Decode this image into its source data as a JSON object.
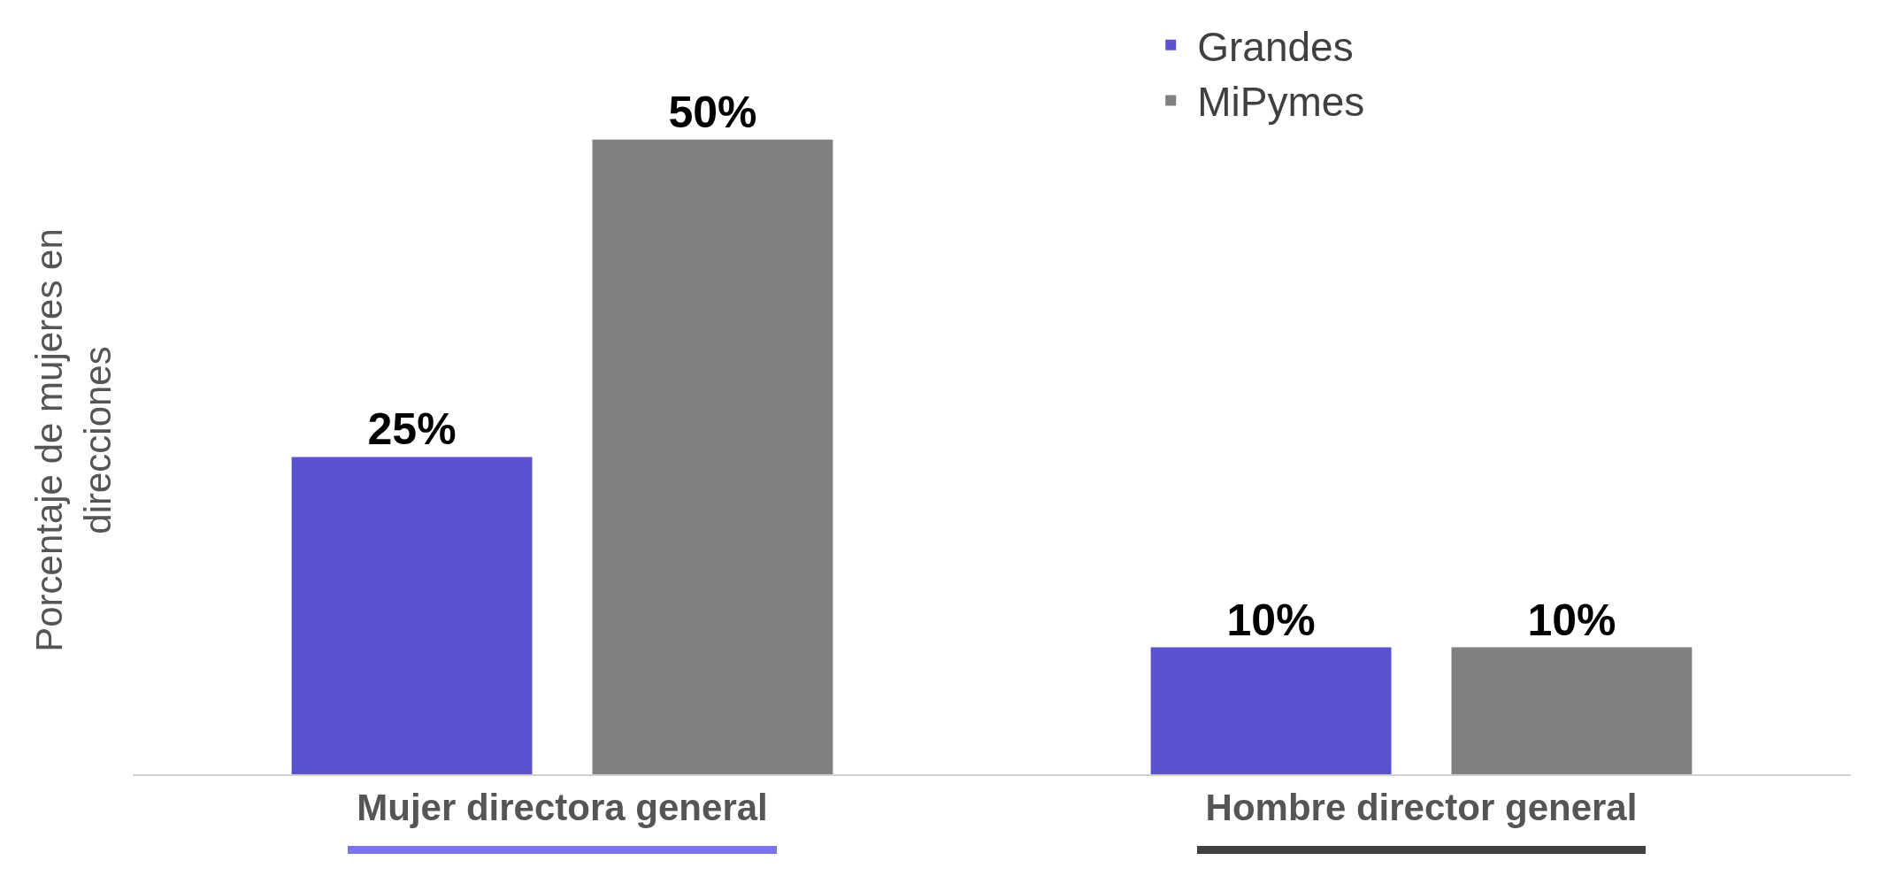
{
  "chart_data": {
    "type": "bar",
    "ylabel": "Porcentaje de mujeres en direcciones",
    "categories": [
      "Mujer directora general",
      "Hombre director general"
    ],
    "series": [
      {
        "name": "Grandes",
        "color": "#5a53cf",
        "values": [
          25,
          10
        ],
        "value_labels": [
          "25%",
          "10%"
        ]
      },
      {
        "name": "MiPymes",
        "color": "#808080",
        "values": [
          50,
          10
        ],
        "value_labels": [
          "50%",
          "10%"
        ]
      }
    ],
    "legend": "top right",
    "grid": false
  }
}
